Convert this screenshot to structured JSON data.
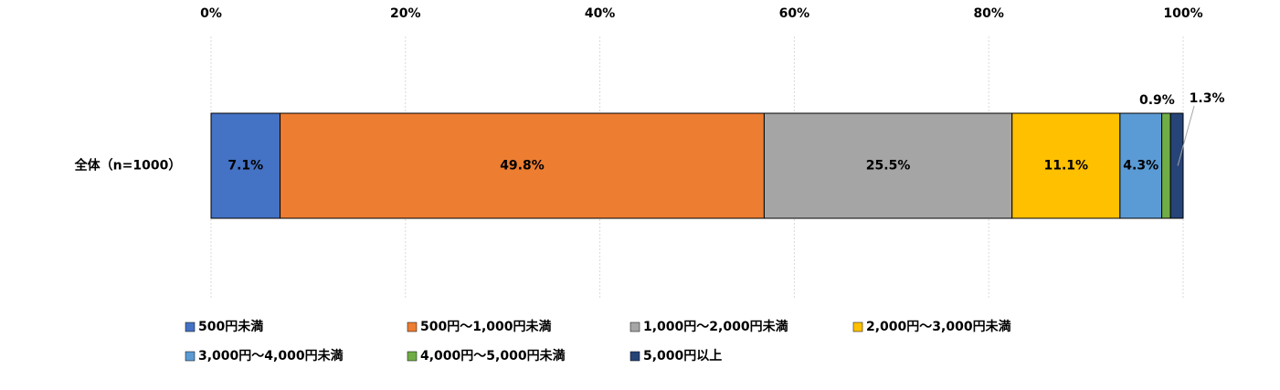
{
  "chart_data": {
    "type": "stacked-bar-horizontal",
    "categories": [
      "全体（n=1000）"
    ],
    "series": [
      {
        "name": "500円未満",
        "color": "#4472c4",
        "values": [
          7.1
        ],
        "value_labels": [
          "7.1%"
        ]
      },
      {
        "name": "500円～1,000円未満",
        "color": "#ed7d31",
        "values": [
          49.8
        ],
        "value_labels": [
          "49.8%"
        ]
      },
      {
        "name": "1,000円～2,000円未満",
        "color": "#a5a5a5",
        "values": [
          25.5
        ],
        "value_labels": [
          "25.5%"
        ]
      },
      {
        "name": "2,000円～3,000円未満",
        "color": "#ffc000",
        "values": [
          11.1
        ],
        "value_labels": [
          "11.1%"
        ]
      },
      {
        "name": "3,000円～4,000円未満",
        "color": "#5b9bd5",
        "values": [
          4.3
        ],
        "value_labels": [
          "4.3%"
        ]
      },
      {
        "name": "4,000円～5,000円未満",
        "color": "#70ad47",
        "values": [
          0.9
        ],
        "value_labels": [
          "0.9%"
        ]
      },
      {
        "name": "5,000円以上",
        "color": "#264478",
        "values": [
          1.3
        ],
        "value_labels": [
          "1.3%"
        ]
      }
    ],
    "xlim": [
      0,
      100
    ],
    "xticks": [
      {
        "value": 0,
        "label": "0%"
      },
      {
        "value": 20,
        "label": "20%"
      },
      {
        "value": 40,
        "label": "40%"
      },
      {
        "value": 60,
        "label": "60%"
      },
      {
        "value": 80,
        "label": "80%"
      },
      {
        "value": 100,
        "label": "100%"
      }
    ],
    "grid": true
  }
}
